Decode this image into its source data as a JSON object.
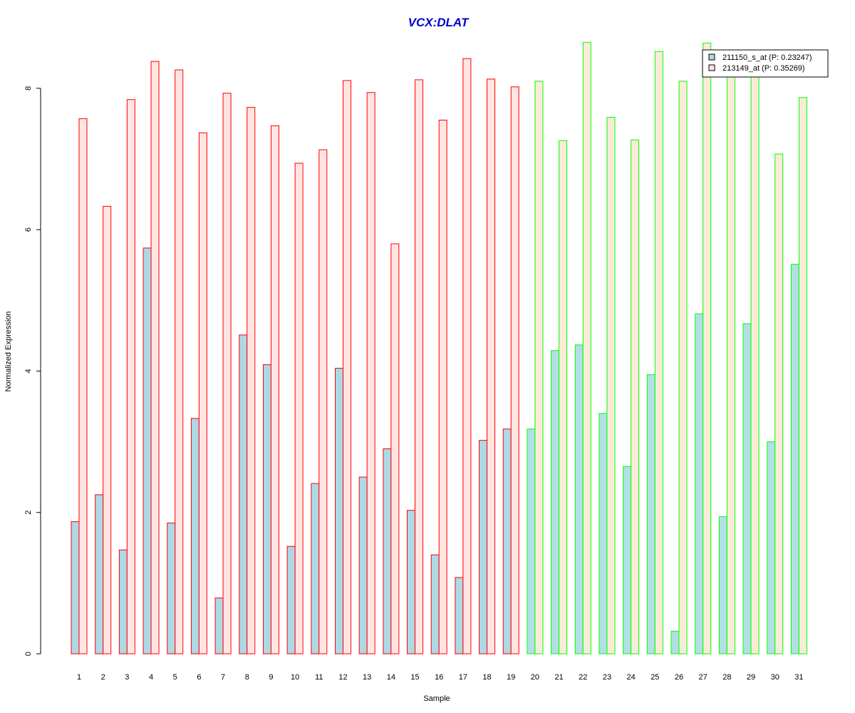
{
  "chart_data": {
    "type": "bar",
    "title": "VCX:DLAT",
    "xlabel": "Sample",
    "ylabel": "Normalized Expression",
    "ylim": [
      0,
      8.7
    ],
    "yticks": [
      0,
      2,
      4,
      6,
      8
    ],
    "grid": false,
    "legend_placement": "top-right",
    "categories": [
      "1",
      "2",
      "3",
      "4",
      "5",
      "6",
      "7",
      "8",
      "9",
      "10",
      "11",
      "12",
      "13",
      "14",
      "15",
      "16",
      "17",
      "18",
      "19",
      "20",
      "21",
      "22",
      "23",
      "24",
      "25",
      "26",
      "27",
      "28",
      "29",
      "30",
      "31"
    ],
    "groups": [
      {
        "samples": [
          1,
          19
        ],
        "border_color": "#ff0000",
        "fill_colors": [
          "#add8e6",
          "#ffe4e1"
        ]
      },
      {
        "samples": [
          20,
          31
        ],
        "border_color": "#00ff00",
        "fill_colors": [
          "#b0e0e6",
          "#faebd7"
        ]
      }
    ],
    "series": [
      {
        "name": "211150_s_at (P: 0.23247)",
        "legend_color": "#add8e6",
        "values": [
          1.87,
          2.25,
          1.47,
          5.74,
          1.85,
          3.33,
          0.79,
          4.51,
          4.09,
          1.52,
          2.41,
          4.04,
          2.5,
          2.9,
          2.03,
          1.4,
          1.08,
          3.02,
          3.18,
          3.18,
          4.29,
          4.37,
          3.4,
          2.65,
          3.95,
          0.32,
          4.81,
          1.94,
          4.67,
          3.0,
          5.51
        ]
      },
      {
        "name": "213149_at (P: 0.35269)",
        "legend_color": "#ffe4e1",
        "values": [
          7.57,
          6.33,
          7.84,
          8.38,
          8.26,
          7.37,
          7.93,
          7.73,
          7.47,
          6.94,
          7.13,
          8.11,
          7.94,
          5.8,
          8.12,
          7.55,
          8.42,
          8.13,
          8.02,
          8.1,
          7.26,
          8.65,
          7.59,
          7.27,
          8.52,
          8.1,
          8.64,
          8.19,
          8.2,
          7.07,
          7.87
        ]
      }
    ]
  },
  "colors": {
    "title": "#0000cd",
    "axis": "#000000",
    "legend_border": "#000000"
  }
}
